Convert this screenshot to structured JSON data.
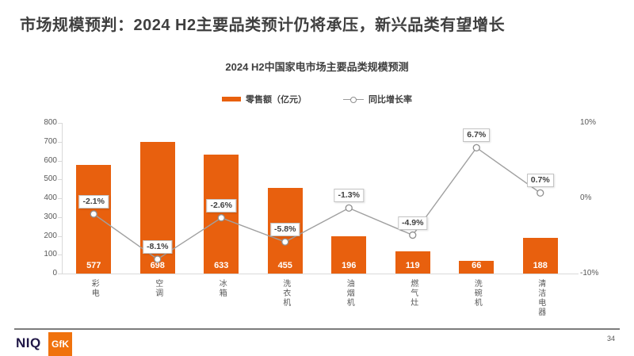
{
  "header": {
    "title": "市场规模预判：2024 H2主要品类预计仍将承压，新兴品类有望增长"
  },
  "chart": {
    "title": "2024 H2中国家电市场主要品类规模预测",
    "legend": {
      "bar": "零售额（亿元）",
      "line": "同比增长率"
    }
  },
  "chart_data": {
    "type": "bar+line",
    "title": "2024 H2中国家电市场主要品类规模预测",
    "categories": [
      "彩电",
      "空调",
      "冰箱",
      "洗衣机",
      "油烟机",
      "燃气灶",
      "洗碗机",
      "清洁电器"
    ],
    "series": [
      {
        "name": "零售额（亿元）",
        "type": "bar",
        "axis": "left",
        "values": [
          577,
          698,
          633,
          455,
          196,
          119,
          66,
          188
        ],
        "color": "#E8600E"
      },
      {
        "name": "同比增长率",
        "type": "line",
        "axis": "right",
        "values": [
          -2.1,
          -8.1,
          -2.6,
          -5.8,
          -1.3,
          -4.9,
          6.7,
          0.7
        ],
        "labels": [
          "-2.1%",
          "-8.1%",
          "-2.6%",
          "-5.8%",
          "-1.3%",
          "-4.9%",
          "6.7%",
          "0.7%"
        ],
        "color": "#a0a0a0"
      }
    ],
    "left_axis": {
      "min": 0,
      "max": 800,
      "step": 100,
      "tick_values": [
        800,
        700,
        600,
        500,
        400,
        300,
        200,
        100,
        0
      ]
    },
    "right_axis": {
      "min": -10,
      "max": 10,
      "tick_values": [
        10,
        0,
        -10
      ],
      "tick_labels": [
        "10%",
        "0%",
        "-10%"
      ]
    },
    "grid": false,
    "legend_position": "top"
  },
  "footer": {
    "niq": "NIQ",
    "gfk": "GfK",
    "page": "34"
  },
  "colors": {
    "accent_orange": "#E8600E",
    "line_gray": "#a0a0a0",
    "title_gray": "#3f3f3f",
    "niq_navy": "#201747",
    "gfk_orange": "#F0720D"
  }
}
